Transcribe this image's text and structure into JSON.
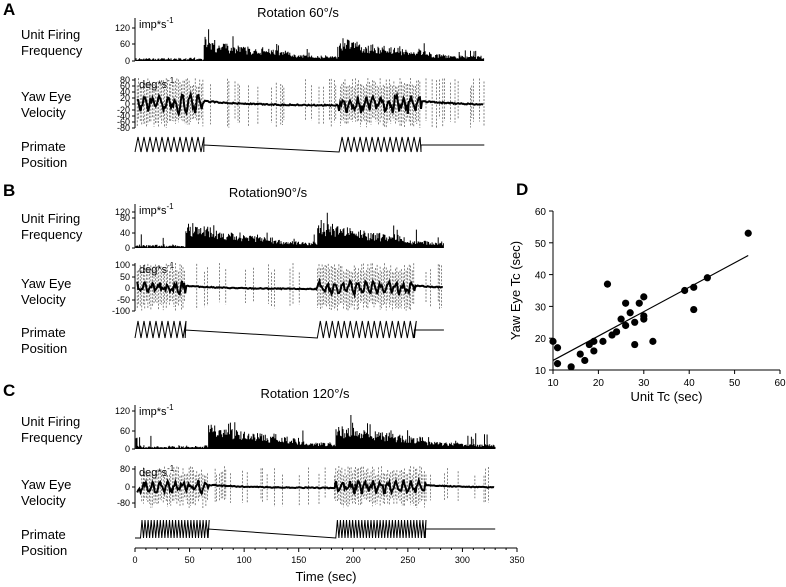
{
  "labels": {
    "unit_firing": [
      "Unit Firing",
      "Frequency"
    ],
    "yaw_eye": [
      "Yaw Eye",
      "Velocity"
    ],
    "primate_position": [
      "Primate",
      "Position"
    ],
    "imp_unit": "imp*s",
    "deg_unit": "deg*s",
    "unit_exp": "-1"
  },
  "chart_data": [
    {
      "panel": "A",
      "type": "line",
      "title": "Rotation 60°/s",
      "time_range_sec": [
        0,
        325
      ],
      "rotation_on_sec": [
        [
          0,
          63
        ],
        [
          187,
          262
        ]
      ],
      "firing": {
        "ylabel": "Unit Firing Frequency",
        "unit": "imp*s-1",
        "yticks": [
          0,
          60,
          120
        ],
        "ylim": [
          0,
          160
        ],
        "peaks": [
          [
            63,
            110
          ],
          [
            187,
            118
          ]
        ]
      },
      "eye": {
        "ylabel": "Yaw Eye Velocity",
        "unit": "deg*s-1",
        "yticks": [
          -80,
          -60,
          -40,
          -20,
          0,
          20,
          40,
          60,
          80
        ],
        "ylim": [
          -80,
          80
        ]
      }
    },
    {
      "panel": "B",
      "type": "line",
      "title": "Rotation90°/s",
      "time_range_sec": [
        0,
        325
      ],
      "rotation_on_sec": [
        [
          0,
          46
        ],
        [
          167,
          256
        ]
      ],
      "firing": {
        "ylabel": "Unit Firing Frequency",
        "unit": "imp*s-1",
        "yticks": [
          0,
          40,
          80,
          120
        ],
        "ylim": [
          0,
          150
        ],
        "peaks": [
          [
            46,
            125
          ],
          [
            167,
            130
          ]
        ]
      },
      "eye": {
        "ylabel": "Yaw Eye Velocity",
        "unit": "deg*s-1",
        "yticks": [
          -100,
          -50,
          0,
          50,
          100
        ],
        "ylim": [
          -100,
          100
        ]
      }
    },
    {
      "panel": "C",
      "type": "line",
      "title": "Rotation 120°/s",
      "xlabel": "Time (sec)",
      "xticks": [
        0,
        50,
        100,
        150,
        200,
        250,
        300,
        350
      ],
      "xlim": [
        0,
        350
      ],
      "rotation_on_sec": [
        [
          5,
          67
        ],
        [
          184,
          266
        ]
      ],
      "firing": {
        "ylabel": "Unit Firing Frequency",
        "unit": "imp*s-1",
        "yticks": [
          0,
          60,
          120
        ],
        "ylim": [
          0,
          150
        ],
        "peaks": [
          [
            67,
            120
          ],
          [
            184,
            122
          ]
        ]
      },
      "eye": {
        "ylabel": "Yaw Eye Velocity",
        "unit": "deg*s-1",
        "yticks": [
          -80,
          0,
          80
        ],
        "ylim": [
          -100,
          100
        ]
      }
    },
    {
      "panel": "D",
      "type": "scatter",
      "xlabel": "Unit Tc (sec)",
      "ylabel": "Yaw Eye Tc (sec)",
      "xlim": [
        10,
        60
      ],
      "ylim": [
        10,
        60
      ],
      "xticks": [
        10,
        20,
        30,
        40,
        50,
        60
      ],
      "yticks": [
        10,
        20,
        30,
        40,
        50,
        60
      ],
      "points": [
        [
          10,
          19
        ],
        [
          11,
          17
        ],
        [
          11,
          12
        ],
        [
          14,
          11
        ],
        [
          16,
          15
        ],
        [
          17,
          13
        ],
        [
          18,
          18
        ],
        [
          19,
          16
        ],
        [
          19,
          19
        ],
        [
          21,
          19
        ],
        [
          22,
          37
        ],
        [
          23,
          21
        ],
        [
          24,
          22
        ],
        [
          25,
          26
        ],
        [
          26,
          31
        ],
        [
          26,
          24
        ],
        [
          27,
          28
        ],
        [
          28,
          25
        ],
        [
          28,
          18
        ],
        [
          29,
          31
        ],
        [
          30,
          33
        ],
        [
          30,
          27
        ],
        [
          30,
          26
        ],
        [
          32,
          19
        ],
        [
          39,
          35
        ],
        [
          41,
          36
        ],
        [
          41,
          29
        ],
        [
          44,
          39
        ],
        [
          53,
          53
        ]
      ],
      "fit_line": {
        "x": [
          10,
          53
        ],
        "y": [
          13,
          46
        ]
      }
    }
  ]
}
